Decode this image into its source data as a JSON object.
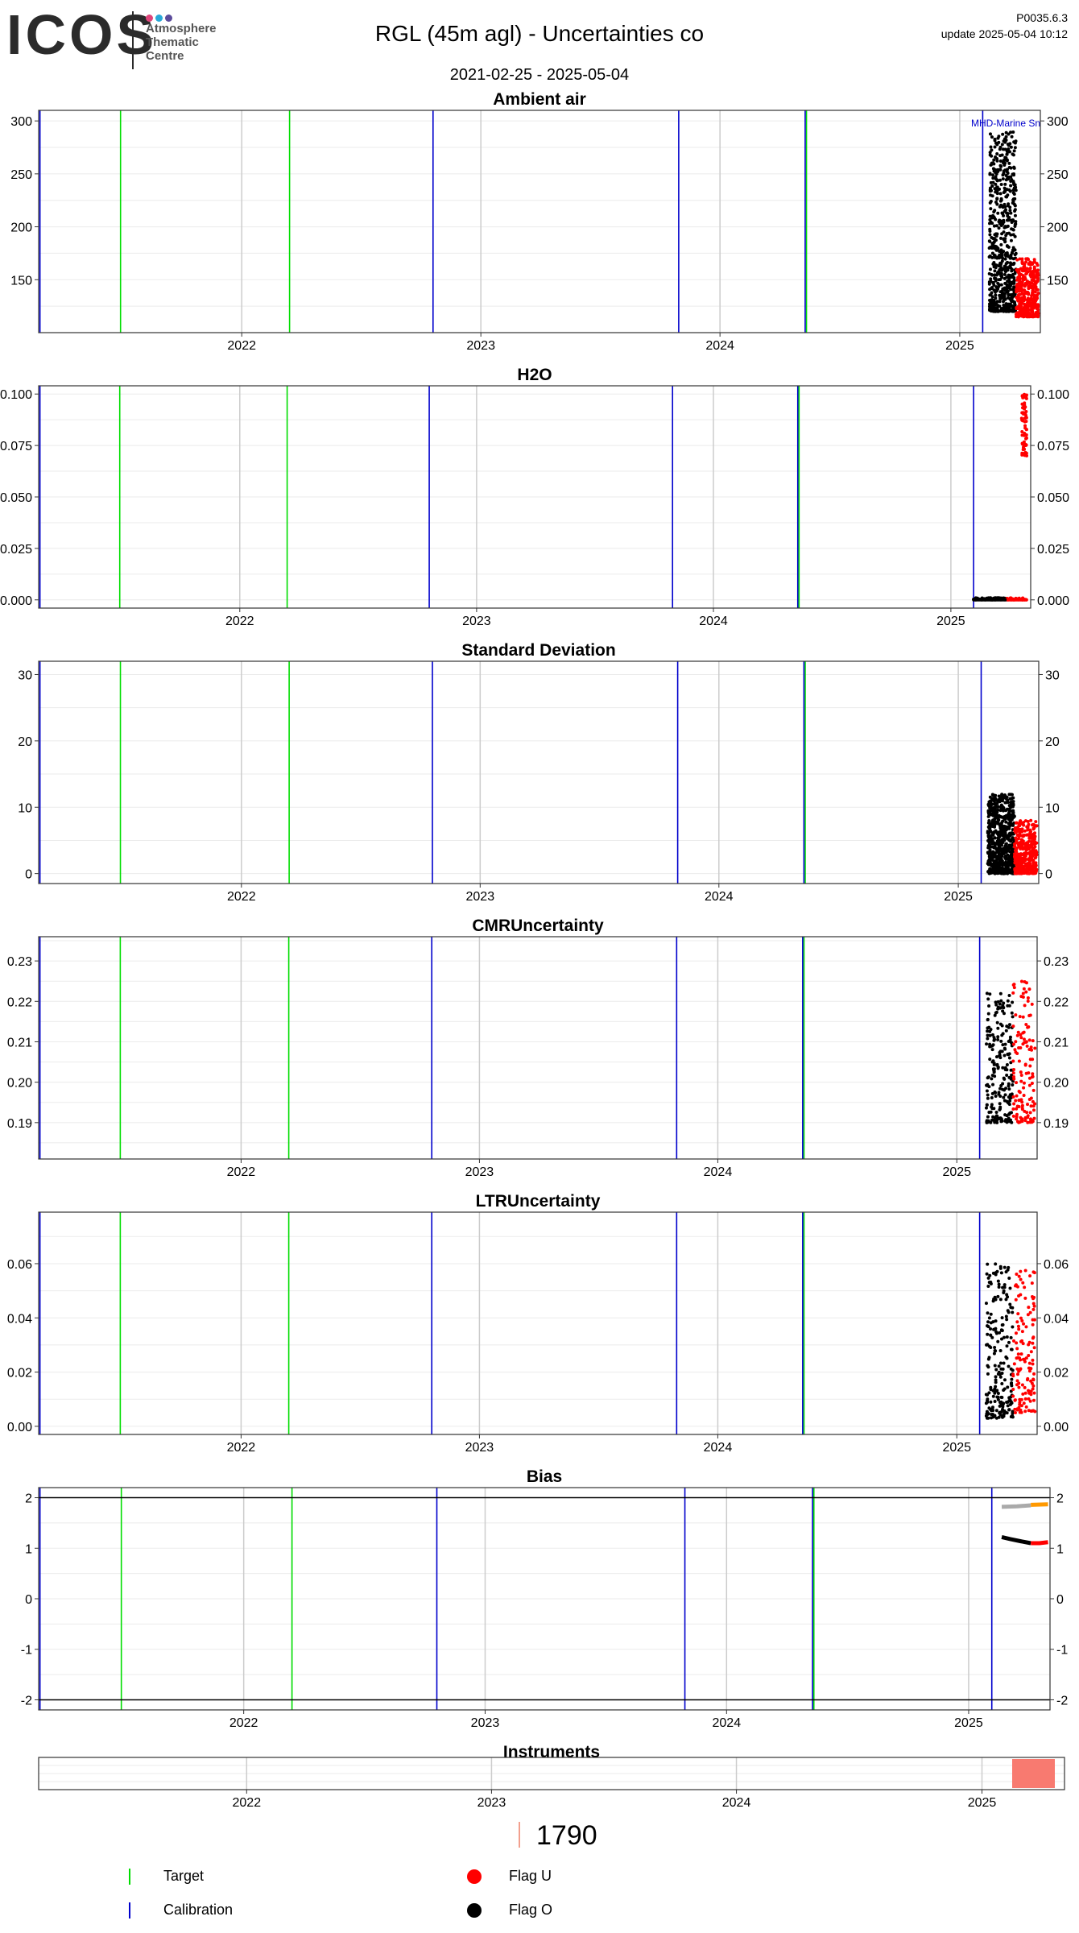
{
  "header": {
    "logo_word": "ICOS",
    "logo_lines": [
      "Atmosphere",
      "Thematic",
      "Centre"
    ],
    "logo_dot_colors": [
      "#e0457b",
      "#2aa9d8",
      "#5b4b9b"
    ],
    "title": "RGL  (45m agl) - Uncertainties co",
    "date_range": "2021-02-25 - 2025-05-04",
    "version": "P0035.6.3",
    "update": "update  2025-05-04 10:12"
  },
  "colors": {
    "target": "#00dd00",
    "calibration": "#0000cc",
    "flag_u": "#ff0000",
    "flag_o": "#000000",
    "grid_major": "#cccccc",
    "grid_minor": "#ebebeb"
  },
  "chart_data": [
    {
      "type": "scatter",
      "title": "Ambient air",
      "x_range": [
        "2021-02-25",
        "2025-05-04"
      ],
      "ylim": [
        100,
        310
      ],
      "yticks": [
        "150",
        "200",
        "250",
        "300"
      ],
      "ytick_values": [
        150,
        200,
        250,
        300
      ],
      "annotation": "MHD-Marine Sn",
      "flag_o_band": {
        "x_range": [
          "2025-02-15",
          "2025-03-28"
        ],
        "y_range": [
          120,
          290
        ]
      },
      "flag_u_band": {
        "x_range": [
          "2025-03-28",
          "2025-05-01"
        ],
        "y_range": [
          115,
          170
        ]
      }
    },
    {
      "type": "scatter",
      "title": "H2O",
      "x_range": [
        "2021-02-25",
        "2025-05-04"
      ],
      "ylim": [
        -0.004,
        0.104
      ],
      "yticks": [
        "0.000",
        "0.025",
        "0.050",
        "0.075",
        "0.100"
      ],
      "ytick_values": [
        0,
        0.025,
        0.05,
        0.075,
        0.1
      ],
      "flag_o_band": {
        "x_range": [
          "2025-02-05",
          "2025-03-28"
        ],
        "y_range": [
          0,
          0.001
        ]
      },
      "flag_u_band": {
        "x_range": [
          "2025-03-28",
          "2025-04-28"
        ],
        "y_range": [
          0,
          0.001
        ]
      },
      "flag_u_cluster": {
        "x_range": [
          "2025-04-20",
          "2025-04-28"
        ],
        "y_range": [
          0.07,
          0.1
        ]
      }
    },
    {
      "type": "scatter",
      "title": "Standard Deviation",
      "x_range": [
        "2021-02-25",
        "2025-05-04"
      ],
      "ylim": [
        -1.5,
        32
      ],
      "yticks": [
        "0",
        "10",
        "20",
        "30"
      ],
      "ytick_values": [
        0,
        10,
        20,
        30
      ],
      "flag_o_band": {
        "x_range": [
          "2025-02-15",
          "2025-03-28"
        ],
        "y_range": [
          0,
          12
        ]
      },
      "flag_u_band": {
        "x_range": [
          "2025-03-28",
          "2025-05-01"
        ],
        "y_range": [
          0,
          8
        ]
      }
    },
    {
      "type": "scatter",
      "title": "CMRUncertainty",
      "x_range": [
        "2021-02-25",
        "2025-05-04"
      ],
      "ylim": [
        0.181,
        0.236
      ],
      "yticks": [
        "0.19",
        "0.20",
        "0.21",
        "0.22",
        "0.23"
      ],
      "ytick_values": [
        0.19,
        0.2,
        0.21,
        0.22,
        0.23
      ],
      "flag_o_band": {
        "x_range": [
          "2025-02-15",
          "2025-03-28"
        ],
        "y_range": [
          0.19,
          0.222
        ]
      },
      "flag_u_band": {
        "x_range": [
          "2025-03-28",
          "2025-05-01"
        ],
        "y_range": [
          0.19,
          0.225
        ]
      }
    },
    {
      "type": "scatter",
      "title": "LTRUncertainty",
      "x_range": [
        "2021-02-25",
        "2025-05-04"
      ],
      "ylim": [
        -0.003,
        0.079
      ],
      "yticks": [
        "0.00",
        "0.02",
        "0.04",
        "0.06"
      ],
      "ytick_values": [
        0,
        0.02,
        0.04,
        0.06
      ],
      "flag_o_band": {
        "x_range": [
          "2025-02-15",
          "2025-03-28"
        ],
        "y_range": [
          0.003,
          0.06
        ]
      },
      "flag_u_band": {
        "x_range": [
          "2025-03-28",
          "2025-05-01"
        ],
        "y_range": [
          0.005,
          0.058
        ]
      }
    },
    {
      "type": "line",
      "title": "Bias",
      "x_range": [
        "2021-02-25",
        "2025-05-04"
      ],
      "ylim": [
        -2.2,
        2.2
      ],
      "yticks": [
        "-2",
        "-1",
        "0",
        "1",
        "2"
      ],
      "ytick_values": [
        -2,
        -1,
        0,
        1,
        2
      ],
      "hlines": [
        2,
        -2
      ],
      "series": [
        {
          "color": "#aaaaaa",
          "x": [
            "2025-02-20",
            "2025-03-15",
            "2025-04-05"
          ],
          "y": [
            1.82,
            1.83,
            1.85
          ]
        },
        {
          "color": "#ff9900",
          "x": [
            "2025-04-05",
            "2025-05-01"
          ],
          "y": [
            1.86,
            1.87
          ]
        },
        {
          "color": "#000000",
          "x": [
            "2025-02-20",
            "2025-03-05",
            "2025-03-20",
            "2025-04-05"
          ],
          "y": [
            1.22,
            1.18,
            1.14,
            1.1
          ]
        },
        {
          "color": "#ff0000",
          "x": [
            "2025-04-05",
            "2025-04-18",
            "2025-05-01"
          ],
          "y": [
            1.1,
            1.1,
            1.12
          ]
        }
      ]
    },
    {
      "type": "bar",
      "title": "Instruments",
      "x_range": [
        "2021-02-25",
        "2025-05-04"
      ],
      "bars": [
        {
          "x_range": [
            "2025-02-15",
            "2025-05-04"
          ],
          "color": "#f87a70"
        }
      ]
    }
  ],
  "x_ticks": [
    "2022",
    "2023",
    "2024",
    "2025"
  ],
  "x_tick_dates": [
    "2022-01-01",
    "2023-01-01",
    "2024-01-01",
    "2025-01-01"
  ],
  "event_lines": {
    "target": [
      "2021-06-30",
      "2022-03-15",
      "2024-05-12"
    ],
    "calibration": [
      "2021-02-27",
      "2022-10-20",
      "2023-10-30",
      "2024-05-10",
      "2025-02-05"
    ]
  },
  "instruments": {
    "count": "1790"
  },
  "legend": {
    "target": "Target",
    "calibration": "Calibration",
    "flag_u": "Flag U",
    "flag_o": "Flag O"
  }
}
